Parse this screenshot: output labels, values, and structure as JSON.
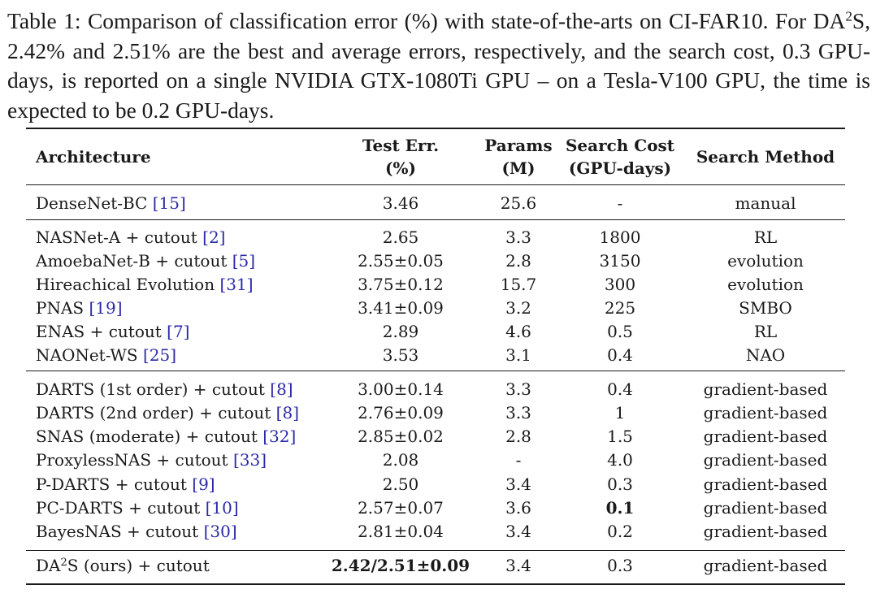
{
  "caption": {
    "prefix": "Table 1: Comparison of classification error (%) with state-of-the-arts on CI-FAR10. For DA",
    "sup": "2",
    "suffix": "S, 2.42% and 2.51% are the best and average errors, respectively, and the search cost, 0.3 GPU-days, is reported on a single NVIDIA GTX-1080Ti GPU – on a Tesla-V100 GPU, the time is expected to be 0.2 GPU-days."
  },
  "headers": {
    "architecture": "Architecture",
    "test_err_1": "Test Err.",
    "test_err_2": "(%)",
    "params_1": "Params",
    "params_2": "(M)",
    "cost_1": "Search Cost",
    "cost_2": "(GPU-days)",
    "method": "Search Method"
  },
  "rows": [
    {
      "name": "DenseNet-BC ",
      "ref": "[15]",
      "err": "3.46",
      "params": "25.6",
      "cost": "-",
      "method": "manual"
    },
    {
      "name": "NASNet-A + cutout ",
      "ref": "[2]",
      "err": "2.65",
      "params": "3.3",
      "cost": "1800",
      "method": "RL"
    },
    {
      "name": "AmoebaNet-B + cutout ",
      "ref": "[5]",
      "err": "2.55±0.05",
      "params": "2.8",
      "cost": "3150",
      "method": "evolution"
    },
    {
      "name": "Hireachical Evolution ",
      "ref": "[31]",
      "err": "3.75±0.12",
      "params": "15.7",
      "cost": "300",
      "method": "evolution"
    },
    {
      "name": "PNAS ",
      "ref": "[19]",
      "err": "3.41±0.09",
      "params": "3.2",
      "cost": "225",
      "method": "SMBO"
    },
    {
      "name": "ENAS + cutout ",
      "ref": "[7]",
      "err": "2.89",
      "params": "4.6",
      "cost": "0.5",
      "method": "RL"
    },
    {
      "name": "NAONet-WS ",
      "ref": "[25]",
      "err": "3.53",
      "params": "3.1",
      "cost": "0.4",
      "method": "NAO"
    },
    {
      "name": "DARTS (1st order) + cutout ",
      "ref": "[8]",
      "err": "3.00±0.14",
      "params": "3.3",
      "cost": "0.4",
      "method": "gradient-based"
    },
    {
      "name": "DARTS (2nd order) + cutout ",
      "ref": "[8]",
      "err": "2.76±0.09",
      "params": "3.3",
      "cost": "1",
      "method": "gradient-based"
    },
    {
      "name": "SNAS (moderate) + cutout ",
      "ref": "[32]",
      "err": "2.85±0.02",
      "params": "2.8",
      "cost": "1.5",
      "method": "gradient-based"
    },
    {
      "name": "ProxylessNAS + cutout ",
      "ref": "[33]",
      "err": "2.08",
      "params": "-",
      "cost": "4.0",
      "method": "gradient-based"
    },
    {
      "name": "P-DARTS + cutout ",
      "ref": "[9]",
      "err": "2.50",
      "params": "3.4",
      "cost": "0.3",
      "method": "gradient-based"
    },
    {
      "name": "PC-DARTS + cutout ",
      "ref": "[10]",
      "err": "2.57±0.07",
      "params": "3.6",
      "cost": "0.1",
      "method": "gradient-based"
    },
    {
      "name": "BayesNAS + cutout ",
      "ref": "[30]",
      "err": "2.81±0.04",
      "params": "3.4",
      "cost": "0.2",
      "method": "gradient-based"
    }
  ],
  "ours": {
    "name_prefix": "DA",
    "name_sup": "2",
    "name_suffix": "S (ours) + cutout",
    "err": "2.42/2.51±0.09",
    "params": "3.4",
    "cost": "0.3",
    "method": "gradient-based"
  }
}
